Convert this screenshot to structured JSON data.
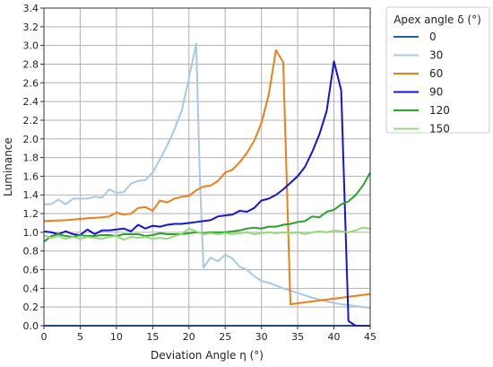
{
  "chart_data": {
    "type": "line",
    "xlabel": "Deviation Angle η (°)",
    "ylabel": "Luminance",
    "xlim": [
      0,
      45
    ],
    "ylim": [
      0,
      3.4
    ],
    "xticks": [
      "0",
      "5",
      "10",
      "15",
      "20",
      "25",
      "30",
      "35",
      "40",
      "45"
    ],
    "yticks": [
      "0.0",
      "0.2",
      "0.4",
      "0.6",
      "0.8",
      "1.0",
      "1.2",
      "1.4",
      "1.6",
      "1.8",
      "2.0",
      "2.2",
      "2.4",
      "2.6",
      "2.8",
      "3.0",
      "3.2",
      "3.4"
    ],
    "grid": true,
    "legend": {
      "title": "Apex angle δ (°)",
      "placement": "outside-top-right"
    },
    "series": [
      {
        "name": "0",
        "color": "#1f5fa8",
        "points": [
          [
            0,
            0.0
          ],
          [
            45,
            0.0
          ]
        ]
      },
      {
        "name": "30",
        "color": "#a9c8e8",
        "points": [
          [
            0,
            1.3
          ],
          [
            1,
            1.3
          ],
          [
            2,
            1.35
          ],
          [
            3,
            1.3
          ],
          [
            4,
            1.36
          ],
          [
            5,
            1.36
          ],
          [
            6,
            1.36
          ],
          [
            7,
            1.38
          ],
          [
            8,
            1.37
          ],
          [
            9,
            1.46
          ],
          [
            10,
            1.42
          ],
          [
            11,
            1.43
          ],
          [
            12,
            1.52
          ],
          [
            13,
            1.55
          ],
          [
            14,
            1.56
          ],
          [
            15,
            1.64
          ],
          [
            16,
            1.78
          ],
          [
            17,
            1.93
          ],
          [
            18,
            2.1
          ],
          [
            19,
            2.3
          ],
          [
            20,
            2.65
          ],
          [
            21,
            3.02
          ],
          [
            21.5,
            1.6
          ],
          [
            22,
            0.62
          ],
          [
            23,
            0.73
          ],
          [
            24,
            0.69
          ],
          [
            25,
            0.76
          ],
          [
            26,
            0.72
          ],
          [
            27,
            0.63
          ],
          [
            28,
            0.6
          ],
          [
            29,
            0.53
          ],
          [
            30,
            0.48
          ],
          [
            31,
            0.46
          ],
          [
            32,
            0.43
          ],
          [
            33,
            0.4
          ],
          [
            35,
            0.35
          ],
          [
            37,
            0.3
          ],
          [
            39,
            0.26
          ],
          [
            41,
            0.23
          ],
          [
            43,
            0.21
          ],
          [
            45,
            0.19
          ]
        ]
      },
      {
        "name": "60",
        "color": "#f07d19",
        "points": [
          [
            0,
            1.12
          ],
          [
            3,
            1.13
          ],
          [
            6,
            1.15
          ],
          [
            8,
            1.16
          ],
          [
            9,
            1.17
          ],
          [
            10,
            1.21
          ],
          [
            11,
            1.19
          ],
          [
            12,
            1.2
          ],
          [
            13,
            1.26
          ],
          [
            14,
            1.27
          ],
          [
            15,
            1.23
          ],
          [
            16,
            1.34
          ],
          [
            17,
            1.32
          ],
          [
            18,
            1.36
          ],
          [
            19,
            1.38
          ],
          [
            20,
            1.39
          ],
          [
            21,
            1.45
          ],
          [
            22,
            1.49
          ],
          [
            23,
            1.5
          ],
          [
            24,
            1.55
          ],
          [
            25,
            1.64
          ],
          [
            26,
            1.67
          ],
          [
            27,
            1.75
          ],
          [
            28,
            1.85
          ],
          [
            29,
            1.98
          ],
          [
            30,
            2.17
          ],
          [
            31,
            2.47
          ],
          [
            32,
            2.95
          ],
          [
            33,
            2.82
          ],
          [
            34,
            0.23
          ],
          [
            38,
            0.27
          ],
          [
            42,
            0.31
          ],
          [
            45,
            0.34
          ]
        ]
      },
      {
        "name": "90",
        "color": "#1414d8",
        "points": [
          [
            0,
            1.01
          ],
          [
            1,
            1.0
          ],
          [
            2,
            0.98
          ],
          [
            3,
            1.01
          ],
          [
            4,
            0.98
          ],
          [
            5,
            0.97
          ],
          [
            6,
            1.03
          ],
          [
            7,
            0.98
          ],
          [
            8,
            1.02
          ],
          [
            9,
            1.02
          ],
          [
            10,
            1.03
          ],
          [
            11,
            1.04
          ],
          [
            12,
            1.01
          ],
          [
            13,
            1.08
          ],
          [
            14,
            1.04
          ],
          [
            15,
            1.07
          ],
          [
            16,
            1.06
          ],
          [
            17,
            1.08
          ],
          [
            18,
            1.09
          ],
          [
            19,
            1.09
          ],
          [
            20,
            1.1
          ],
          [
            21,
            1.11
          ],
          [
            22,
            1.12
          ],
          [
            23,
            1.13
          ],
          [
            24,
            1.17
          ],
          [
            25,
            1.18
          ],
          [
            26,
            1.19
          ],
          [
            27,
            1.23
          ],
          [
            28,
            1.22
          ],
          [
            29,
            1.26
          ],
          [
            30,
            1.34
          ],
          [
            31,
            1.36
          ],
          [
            32,
            1.4
          ],
          [
            33,
            1.46
          ],
          [
            34,
            1.53
          ],
          [
            35,
            1.6
          ],
          [
            36,
            1.7
          ],
          [
            37,
            1.86
          ],
          [
            38,
            2.05
          ],
          [
            39,
            2.3
          ],
          [
            40,
            2.83
          ],
          [
            41,
            2.52
          ],
          [
            42,
            0.05
          ],
          [
            43,
            0.0
          ],
          [
            45,
            0.0
          ]
        ]
      },
      {
        "name": "120",
        "color": "#2ca02c",
        "points": [
          [
            0,
            0.9
          ],
          [
            1,
            0.96
          ],
          [
            2,
            0.98
          ],
          [
            3,
            0.96
          ],
          [
            4,
            0.95
          ],
          [
            5,
            0.97
          ],
          [
            6,
            0.96
          ],
          [
            7,
            0.96
          ],
          [
            8,
            0.97
          ],
          [
            9,
            0.97
          ],
          [
            10,
            0.96
          ],
          [
            11,
            0.98
          ],
          [
            12,
            0.98
          ],
          [
            13,
            0.98
          ],
          [
            14,
            0.96
          ],
          [
            15,
            0.97
          ],
          [
            16,
            0.99
          ],
          [
            17,
            0.98
          ],
          [
            18,
            0.98
          ],
          [
            19,
            0.98
          ],
          [
            20,
            0.99
          ],
          [
            21,
            1.0
          ],
          [
            22,
            0.99
          ],
          [
            23,
            1.0
          ],
          [
            24,
            1.0
          ],
          [
            25,
            1.0
          ],
          [
            26,
            1.01
          ],
          [
            27,
            1.02
          ],
          [
            28,
            1.04
          ],
          [
            29,
            1.05
          ],
          [
            30,
            1.04
          ],
          [
            31,
            1.06
          ],
          [
            32,
            1.06
          ],
          [
            33,
            1.08
          ],
          [
            34,
            1.09
          ],
          [
            35,
            1.11
          ],
          [
            36,
            1.12
          ],
          [
            37,
            1.17
          ],
          [
            38,
            1.16
          ],
          [
            39,
            1.22
          ],
          [
            40,
            1.24
          ],
          [
            41,
            1.3
          ],
          [
            42,
            1.33
          ],
          [
            43,
            1.4
          ],
          [
            44,
            1.5
          ],
          [
            45,
            1.64
          ]
        ]
      },
      {
        "name": "150",
        "color": "#95d97f",
        "points": [
          [
            0,
            0.97
          ],
          [
            1,
            0.94
          ],
          [
            2,
            0.96
          ],
          [
            3,
            0.93
          ],
          [
            4,
            0.95
          ],
          [
            5,
            0.93
          ],
          [
            6,
            0.95
          ],
          [
            7,
            0.94
          ],
          [
            8,
            0.93
          ],
          [
            9,
            0.95
          ],
          [
            10,
            0.96
          ],
          [
            11,
            0.92
          ],
          [
            12,
            0.95
          ],
          [
            13,
            0.94
          ],
          [
            14,
            0.95
          ],
          [
            15,
            0.93
          ],
          [
            16,
            0.94
          ],
          [
            17,
            0.93
          ],
          [
            18,
            0.96
          ],
          [
            19,
            0.98
          ],
          [
            20,
            1.04
          ],
          [
            21,
            1.01
          ],
          [
            22,
            0.98
          ],
          [
            23,
            0.99
          ],
          [
            24,
            0.98
          ],
          [
            25,
            0.99
          ],
          [
            26,
            0.98
          ],
          [
            27,
            0.99
          ],
          [
            28,
            1.0
          ],
          [
            29,
            0.98
          ],
          [
            30,
            0.99
          ],
          [
            31,
            1.0
          ],
          [
            32,
            0.99
          ],
          [
            33,
            1.0
          ],
          [
            34,
            0.99
          ],
          [
            35,
            1.0
          ],
          [
            36,
            0.98
          ],
          [
            37,
            1.0
          ],
          [
            38,
            1.01
          ],
          [
            39,
            1.0
          ],
          [
            40,
            1.02
          ],
          [
            41,
            1.01
          ],
          [
            42,
            1.0
          ],
          [
            43,
            1.02
          ],
          [
            44,
            1.05
          ],
          [
            45,
            1.04
          ]
        ]
      }
    ]
  }
}
